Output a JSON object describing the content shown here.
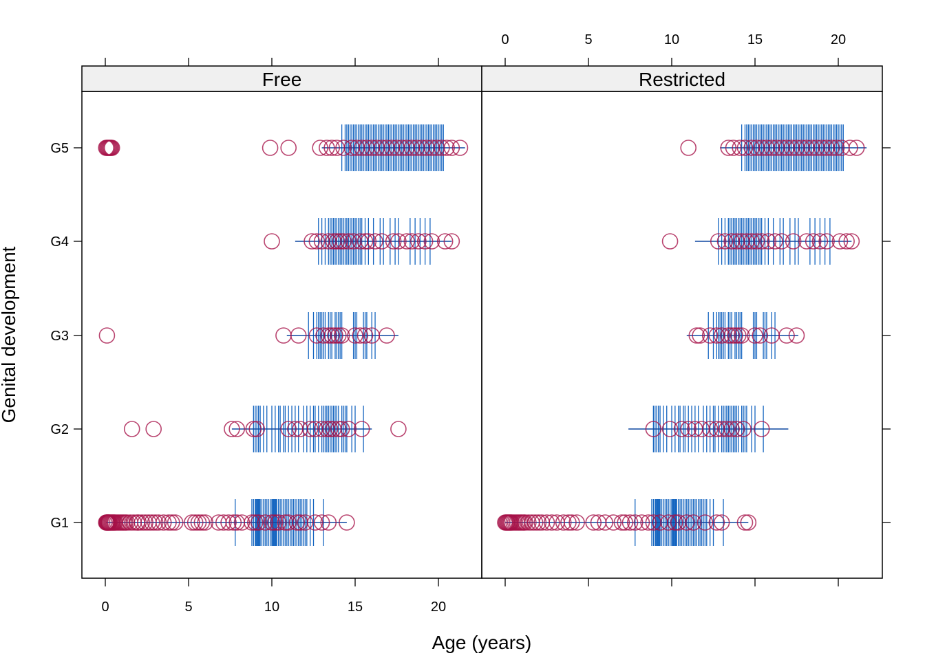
{
  "chart_data": {
    "type": "scatter",
    "xlabel": "Age (years)",
    "ylabel": "Genital development",
    "xlim": [
      -1.4,
      22.6
    ],
    "x_ticks": [
      0,
      5,
      10,
      15,
      20
    ],
    "categories": [
      "G1",
      "G2",
      "G3",
      "G4",
      "G5"
    ],
    "colors": {
      "points": "#A50F46",
      "rug": "#1565C0",
      "strip_bg": "#F0F0F0",
      "frame": "#000000"
    },
    "panels": [
      {
        "name": "Free",
        "groups": [
          {
            "category": "G1",
            "ages": [
              0.05,
              0.08,
              0.1,
              0.12,
              0.15,
              0.18,
              0.2,
              0.22,
              0.25,
              0.3,
              0.35,
              0.4,
              0.45,
              0.5,
              0.55,
              0.6,
              0.7,
              0.8,
              0.9,
              1.0,
              1.1,
              1.2,
              1.3,
              1.5,
              1.7,
              1.9,
              2.0,
              2.2,
              2.4,
              2.6,
              2.8,
              3.0,
              3.2,
              3.5,
              3.8,
              4.0,
              4.2,
              5.2,
              5.4,
              5.6,
              5.8,
              6.0,
              6.8,
              7.1,
              7.4,
              7.7,
              7.9,
              8.2,
              8.8,
              9.0,
              9.2,
              9.6,
              10.0,
              10.2,
              10.4,
              10.8,
              11.0,
              11.5,
              11.7,
              12.0,
              12.6,
              13.0,
              13.4,
              14.5
            ],
            "interval": [
              0.05,
              14.5
            ],
            "rug": [
              7.8,
              8.8,
              8.9,
              9.0,
              9.05,
              9.1,
              9.15,
              9.2,
              9.25,
              9.3,
              9.4,
              9.5,
              9.6,
              9.7,
              9.8,
              9.9,
              10.0,
              10.05,
              10.1,
              10.15,
              10.2,
              10.25,
              10.3,
              10.4,
              10.5,
              10.6,
              10.7,
              10.8,
              10.9,
              11.0,
              11.1,
              11.2,
              11.3,
              11.4,
              11.5,
              11.6,
              11.7,
              11.8,
              11.9,
              12.0,
              12.1,
              12.3,
              12.5,
              13.1
            ]
          },
          {
            "category": "G2",
            "ages": [
              1.6,
              2.9,
              7.6,
              7.9,
              8.9,
              9.1,
              11.0,
              11.4,
              11.7,
              12.3,
              12.6,
              13.0,
              13.3,
              13.5,
              13.7,
              14.0,
              14.2,
              14.6,
              15.4,
              17.6
            ],
            "interval": [
              7.6,
              16.0
            ],
            "rug": [
              8.9,
              9.0,
              9.1,
              9.2,
              9.3,
              9.5,
              9.7,
              10.0,
              10.2,
              10.4,
              10.5,
              10.7,
              10.8,
              11.0,
              11.2,
              11.4,
              11.6,
              11.9,
              12.1,
              12.3,
              12.5,
              12.6,
              12.8,
              13.0,
              13.1,
              13.2,
              13.3,
              13.4,
              13.5,
              13.6,
              13.7,
              13.8,
              13.9,
              14.0,
              14.2,
              14.3,
              14.4,
              14.5,
              14.8,
              15.0,
              15.5
            ]
          },
          {
            "category": "G3",
            "ages": [
              0.1,
              10.7,
              11.6,
              12.7,
              13.1,
              13.4,
              13.6,
              13.8,
              14.0,
              14.2,
              15.0,
              15.3,
              15.6,
              16.0,
              16.9
            ],
            "interval": [
              10.9,
              17.6
            ],
            "rug": [
              12.2,
              12.5,
              12.7,
              12.8,
              12.9,
              13.0,
              13.1,
              13.2,
              13.4,
              13.5,
              13.6,
              13.8,
              13.9,
              14.0,
              14.1,
              14.2,
              14.9,
              15.0,
              15.1,
              15.5,
              15.6,
              15.7,
              16.0,
              16.2
            ]
          },
          {
            "category": "G4",
            "ages": [
              10.0,
              12.4,
              12.7,
              13.0,
              13.4,
              13.7,
              13.9,
              14.1,
              14.3,
              14.6,
              14.9,
              15.3,
              15.6,
              15.8,
              16.2,
              16.6,
              17.3,
              17.6,
              18.1,
              18.4,
              18.8,
              19.2,
              19.6,
              20.4,
              20.8
            ],
            "interval": [
              11.4,
              20.8
            ],
            "rug": [
              12.8,
              13.0,
              13.2,
              13.4,
              13.5,
              13.6,
              13.7,
              13.8,
              13.9,
              14.0,
              14.1,
              14.2,
              14.3,
              14.4,
              14.5,
              14.6,
              14.7,
              14.8,
              14.9,
              15.0,
              15.1,
              15.2,
              15.3,
              15.4,
              15.6,
              15.8,
              16.1,
              16.5,
              16.7,
              17.1,
              17.4,
              17.6,
              18.3,
              18.6,
              18.9,
              19.2,
              19.5
            ]
          },
          {
            "category": "G5",
            "ages": [
              0.05,
              0.1,
              0.15,
              0.2,
              0.25,
              0.3,
              0.35,
              0.4,
              9.9,
              11.0,
              12.9,
              13.3,
              13.6,
              13.9,
              14.3,
              14.8,
              15.1,
              15.4,
              15.7,
              16.0,
              16.3,
              16.6,
              16.9,
              17.2,
              17.5,
              17.8,
              18.1,
              18.4,
              18.7,
              19.0,
              19.3,
              19.6,
              19.9,
              20.2,
              20.5,
              20.8,
              21.3
            ],
            "interval": [
              13.0,
              21.6
            ],
            "rug": [
              14.2,
              14.4,
              14.5,
              14.6,
              14.7,
              14.8,
              14.9,
              15.0,
              15.1,
              15.2,
              15.3,
              15.4,
              15.5,
              15.6,
              15.7,
              15.8,
              15.9,
              16.0,
              16.1,
              16.2,
              16.3,
              16.4,
              16.5,
              16.6,
              16.7,
              16.8,
              16.9,
              17.0,
              17.1,
              17.2,
              17.3,
              17.4,
              17.5,
              17.6,
              17.7,
              17.8,
              17.9,
              18.0,
              18.1,
              18.2,
              18.3,
              18.4,
              18.5,
              18.6,
              18.7,
              18.8,
              18.9,
              19.0,
              19.1,
              19.2,
              19.3,
              19.4,
              19.5,
              19.6,
              19.7,
              19.8,
              19.9,
              20.0,
              20.1,
              20.2,
              20.3
            ]
          }
        ]
      },
      {
        "name": "Restricted",
        "groups": [
          {
            "category": "G1",
            "ages": [
              0.0,
              0.05,
              0.1,
              0.15,
              0.2,
              0.25,
              0.3,
              0.35,
              0.4,
              0.5,
              0.6,
              0.7,
              0.8,
              0.9,
              1.0,
              1.1,
              1.2,
              1.4,
              1.6,
              1.8,
              2.0,
              2.2,
              2.5,
              2.8,
              3.1,
              3.5,
              3.8,
              4.0,
              4.3,
              5.3,
              5.6,
              6.0,
              6.5,
              7.0,
              7.2,
              7.5,
              7.8,
              8.2,
              8.6,
              8.9,
              9.3,
              9.8,
              10.2,
              10.4,
              10.9,
              11.3,
              12.0,
              12.7,
              13.0,
              14.4,
              14.6
            ],
            "interval": [
              0.0,
              14.6
            ],
            "rug": [
              7.8,
              8.8,
              8.9,
              9.0,
              9.05,
              9.1,
              9.15,
              9.2,
              9.25,
              9.3,
              9.4,
              9.5,
              9.6,
              9.7,
              9.8,
              9.9,
              10.0,
              10.05,
              10.1,
              10.15,
              10.2,
              10.25,
              10.3,
              10.4,
              10.5,
              10.6,
              10.7,
              10.8,
              10.9,
              11.0,
              11.1,
              11.2,
              11.3,
              11.4,
              11.5,
              11.6,
              11.7,
              11.8,
              11.9,
              12.0,
              12.1,
              12.3,
              12.5,
              13.1
            ]
          },
          {
            "category": "G2",
            "ages": [
              8.9,
              9.9,
              10.6,
              11.0,
              11.4,
              11.8,
              12.3,
              12.7,
              13.0,
              13.3,
              13.6,
              13.9,
              14.3,
              15.4
            ],
            "interval": [
              7.4,
              17.0
            ],
            "rug": [
              8.9,
              9.0,
              9.1,
              9.2,
              9.3,
              9.5,
              9.7,
              10.0,
              10.2,
              10.4,
              10.5,
              10.7,
              10.8,
              11.0,
              11.2,
              11.4,
              11.6,
              11.9,
              12.1,
              12.3,
              12.5,
              12.6,
              12.8,
              13.0,
              13.1,
              13.2,
              13.3,
              13.4,
              13.5,
              13.6,
              13.7,
              13.8,
              13.9,
              14.0,
              14.2,
              14.3,
              14.4,
              14.5,
              14.8,
              15.0,
              15.5
            ]
          },
          {
            "category": "G3",
            "ages": [
              11.5,
              11.7,
              12.3,
              12.7,
              13.0,
              13.4,
              13.6,
              13.8,
              14.0,
              14.2,
              15.0,
              15.3,
              16.0,
              16.9,
              17.5
            ],
            "interval": [
              10.9,
              17.6
            ],
            "rug": [
              12.2,
              12.5,
              12.7,
              12.8,
              12.9,
              13.0,
              13.1,
              13.2,
              13.4,
              13.5,
              13.6,
              13.8,
              13.9,
              14.0,
              14.1,
              14.2,
              14.9,
              15.0,
              15.1,
              15.5,
              15.6,
              15.7,
              16.0,
              16.2
            ]
          },
          {
            "category": "G4",
            "ages": [
              9.9,
              12.8,
              13.2,
              13.6,
              13.9,
              14.2,
              14.5,
              14.8,
              15.1,
              15.4,
              15.8,
              16.2,
              16.6,
              17.3,
              18.1,
              18.5,
              18.9,
              19.3,
              20.1,
              20.5,
              20.8
            ],
            "interval": [
              11.4,
              20.8
            ],
            "rug": [
              12.8,
              13.0,
              13.2,
              13.4,
              13.5,
              13.6,
              13.7,
              13.8,
              13.9,
              14.0,
              14.1,
              14.2,
              14.3,
              14.4,
              14.5,
              14.6,
              14.7,
              14.8,
              14.9,
              15.0,
              15.1,
              15.2,
              15.3,
              15.4,
              15.6,
              15.8,
              16.1,
              16.5,
              16.7,
              17.1,
              17.4,
              17.6,
              18.3,
              18.6,
              18.9,
              19.2,
              19.5
            ]
          },
          {
            "category": "G5",
            "ages": [
              11.0,
              13.4,
              13.7,
              14.1,
              14.4,
              14.8,
              15.1,
              15.4,
              15.7,
              16.0,
              16.3,
              16.6,
              16.9,
              17.2,
              17.5,
              17.8,
              18.1,
              18.4,
              18.7,
              19.0,
              19.3,
              19.6,
              19.9,
              20.2,
              20.7,
              21.1
            ],
            "interval": [
              12.9,
              21.7
            ],
            "rug": [
              14.2,
              14.4,
              14.5,
              14.6,
              14.7,
              14.8,
              14.9,
              15.0,
              15.1,
              15.2,
              15.3,
              15.4,
              15.5,
              15.6,
              15.7,
              15.8,
              15.9,
              16.0,
              16.1,
              16.2,
              16.3,
              16.4,
              16.5,
              16.6,
              16.7,
              16.8,
              16.9,
              17.0,
              17.1,
              17.2,
              17.3,
              17.4,
              17.5,
              17.6,
              17.7,
              17.8,
              17.9,
              18.0,
              18.1,
              18.2,
              18.3,
              18.4,
              18.5,
              18.6,
              18.7,
              18.8,
              18.9,
              19.0,
              19.1,
              19.2,
              19.3,
              19.4,
              19.5,
              19.6,
              19.7,
              19.8,
              19.9,
              20.0,
              20.1,
              20.2,
              20.3
            ]
          }
        ]
      }
    ]
  }
}
